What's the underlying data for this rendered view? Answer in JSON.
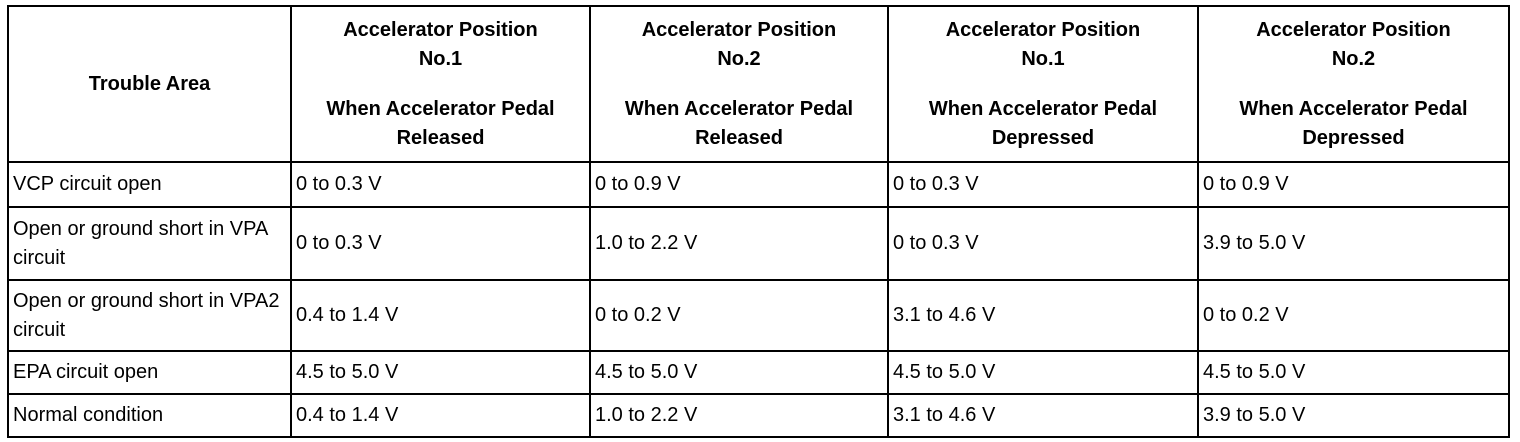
{
  "table": {
    "corner": "Trouble Area",
    "columns": [
      {
        "title": [
          "Accelerator Position",
          "No.1"
        ],
        "state": [
          "When Accelerator Pedal",
          "Released"
        ]
      },
      {
        "title": [
          "Accelerator Position",
          "No.2"
        ],
        "state": [
          "When Accelerator Pedal",
          "Released"
        ]
      },
      {
        "title": [
          "Accelerator Position",
          "No.1"
        ],
        "state": [
          "When Accelerator Pedal",
          "Depressed"
        ]
      },
      {
        "title": [
          "Accelerator Position",
          "No.2"
        ],
        "state": [
          "When Accelerator Pedal",
          "Depressed"
        ]
      }
    ],
    "rows": [
      [
        "VCP circuit open",
        "0 to 0.3 V",
        "0 to 0.9 V",
        "0 to 0.3 V",
        "0 to 0.9 V"
      ],
      [
        "Open or ground short in VPA circuit",
        "0 to 0.3 V",
        "1.0 to 2.2 V",
        "0 to 0.3 V",
        "3.9 to 5.0 V"
      ],
      [
        "Open or ground short in VPA2 circuit",
        "0.4 to 1.4 V",
        "0 to 0.2 V",
        "3.1 to 4.6 V",
        "0 to 0.2 V"
      ],
      [
        "EPA circuit open",
        "4.5 to 5.0 V",
        "4.5 to 5.0 V",
        "4.5 to 5.0 V",
        "4.5 to 5.0 V"
      ],
      [
        "Normal condition",
        "0.4 to 1.4 V",
        "1.0 to 2.2 V",
        "3.1 to 4.6 V",
        "3.9 to 5.0 V"
      ]
    ]
  }
}
